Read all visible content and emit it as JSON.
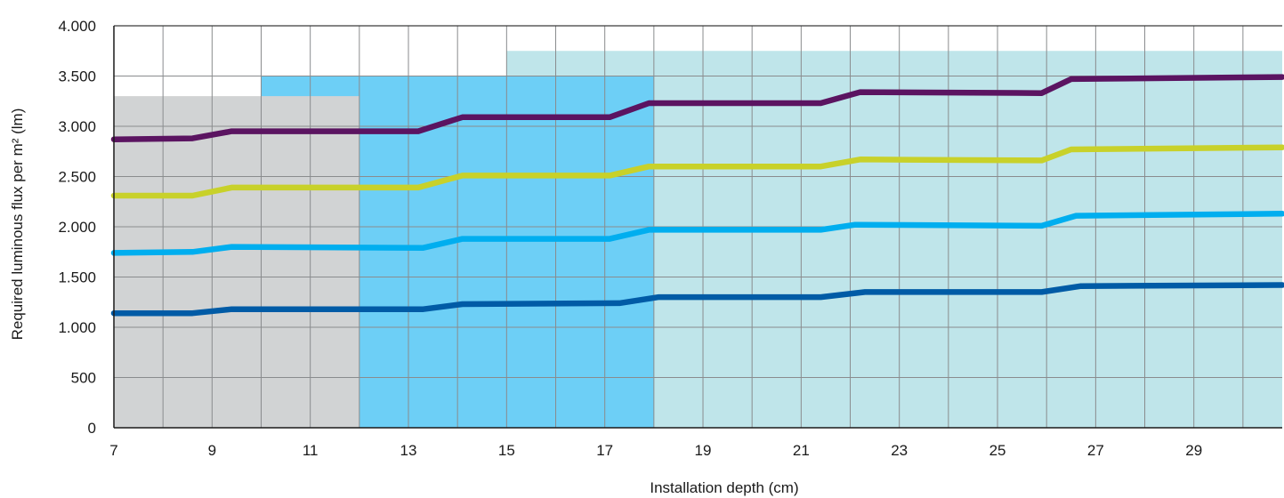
{
  "chart_data": {
    "type": "line",
    "title": "",
    "xlabel": "Installation depth (cm)",
    "ylabel": "Required luminous flux per m² (lm)",
    "xlim": [
      7,
      30.8
    ],
    "ylim": [
      0,
      4000
    ],
    "xticks": [
      7,
      9,
      11,
      13,
      15,
      17,
      19,
      21,
      23,
      25,
      27,
      29
    ],
    "yticks": [
      0,
      500,
      1000,
      1500,
      2000,
      2500,
      3000,
      3500,
      4000
    ],
    "ytick_labels": [
      "0",
      "500",
      "1.000",
      "1.500",
      "2.000",
      "2.500",
      "3.000",
      "3.500",
      "4.000"
    ],
    "grid": true,
    "legend": "none",
    "regions": [
      {
        "x_start": 10,
        "x_end": 18,
        "y_top": 3500,
        "color": "#6dcff6"
      },
      {
        "x_start": 15,
        "x_end": 30.8,
        "y_top": 3750,
        "color": "#bfe5ea"
      },
      {
        "x_start": 7,
        "x_end": 12,
        "y_top": 3300,
        "color": "#d1d3d4"
      },
      {
        "x_start": 12,
        "x_end": 18,
        "y_top": 3500,
        "color": "#6dcff6"
      }
    ],
    "series": [
      {
        "color": "#005ba6",
        "x": [
          7,
          8.6,
          9.4,
          13.3,
          14.1,
          17.3,
          18.1,
          21.4,
          22.3,
          25.9,
          26.7,
          30.8
        ],
        "y": [
          1140,
          1140,
          1180,
          1180,
          1230,
          1240,
          1300,
          1300,
          1350,
          1350,
          1410,
          1420
        ]
      },
      {
        "color": "#00aeef",
        "x": [
          7,
          8.6,
          9.4,
          13.3,
          14.1,
          17.1,
          17.9,
          21.4,
          22.1,
          25.9,
          26.6,
          30.8
        ],
        "y": [
          1740,
          1750,
          1800,
          1790,
          1880,
          1880,
          1970,
          1970,
          2020,
          2010,
          2110,
          2130
        ]
      },
      {
        "color": "#c8d12a",
        "x": [
          7,
          8.6,
          9.4,
          13.2,
          14.1,
          17.1,
          17.9,
          21.4,
          22.2,
          25.9,
          26.5,
          30.8
        ],
        "y": [
          2310,
          2310,
          2390,
          2390,
          2510,
          2510,
          2600,
          2600,
          2670,
          2660,
          2770,
          2790
        ]
      },
      {
        "color": "#5b1461",
        "x": [
          7,
          8.6,
          9.4,
          13.2,
          14.1,
          17.1,
          17.9,
          21.4,
          22.2,
          25.9,
          26.5,
          30.8
        ],
        "y": [
          2870,
          2880,
          2950,
          2950,
          3090,
          3090,
          3230,
          3230,
          3340,
          3330,
          3470,
          3490
        ]
      }
    ]
  }
}
